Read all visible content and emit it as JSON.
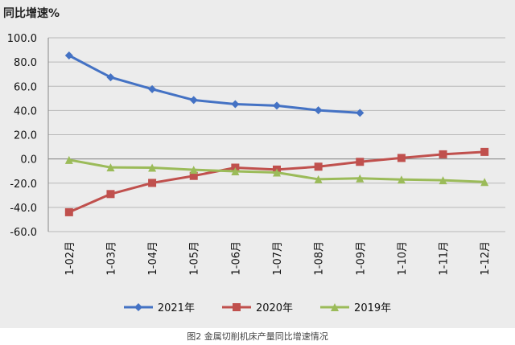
{
  "chart_data": {
    "type": "line",
    "title": "同比增速%",
    "caption": "图2 金属切削机床产量同比增速情况",
    "categories": [
      "1-02月",
      "1-03月",
      "1-04月",
      "1-05月",
      "1-06月",
      "1-07月",
      "1-08月",
      "1-09月",
      "1-10月",
      "1-11月",
      "1-12月"
    ],
    "ylim": [
      -60,
      100
    ],
    "yticks": [
      "100.0",
      "80.0",
      "60.0",
      "40.0",
      "20.0",
      "0.0",
      "-20.0",
      "-40.0",
      "-60.0"
    ],
    "grid": true,
    "legend_position": "bottom",
    "series": [
      {
        "name": "2021年",
        "color": "#4472c4",
        "marker": "diamond",
        "values": [
          85.4,
          67.4,
          57.6,
          48.6,
          45.2,
          44.0,
          40.2,
          38.0,
          null,
          null,
          null
        ]
      },
      {
        "name": "2020年",
        "color": "#c0504d",
        "marker": "square",
        "values": [
          -44.0,
          -29.0,
          -19.8,
          -14.0,
          -7.2,
          -8.8,
          -6.4,
          -2.4,
          0.8,
          3.8,
          5.8
        ]
      },
      {
        "name": "2019年",
        "color": "#9bbb59",
        "marker": "triangle",
        "values": [
          -0.8,
          -7.0,
          -7.2,
          -9.0,
          -10.2,
          -11.2,
          -16.8,
          -16.0,
          -17.0,
          -17.6,
          -19.0
        ]
      }
    ]
  }
}
